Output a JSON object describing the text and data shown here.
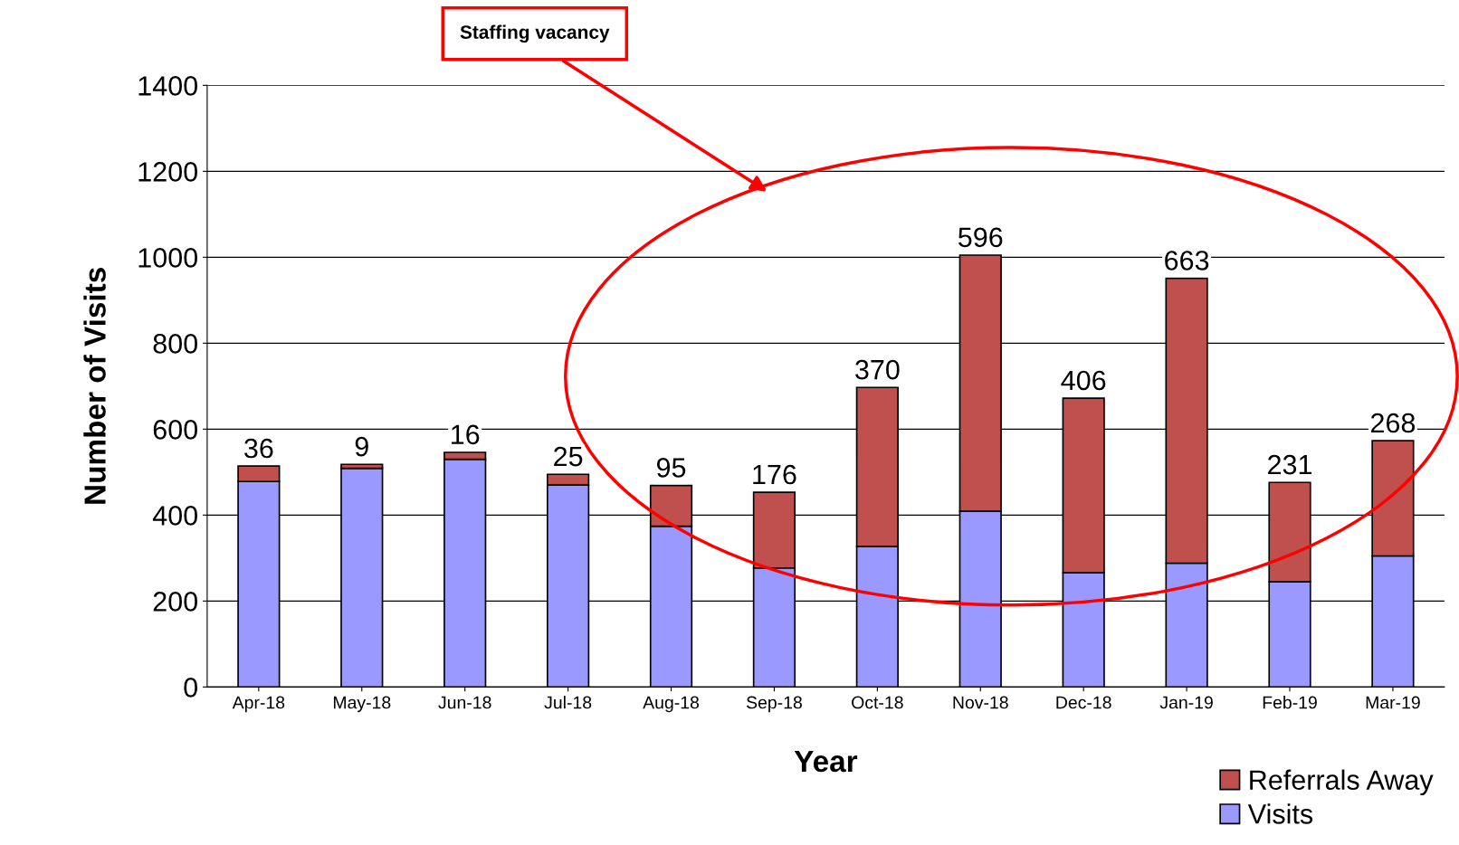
{
  "chart_data": {
    "type": "bar",
    "stacked": true,
    "xlabel": "Year",
    "ylabel": "Number of Visits",
    "categories": [
      "Apr-18",
      "May-18",
      "Jun-18",
      "Jul-18",
      "Aug-18",
      "Sep-18",
      "Oct-18",
      "Nov-18",
      "Dec-18",
      "Jan-19",
      "Feb-19",
      "Mar-19"
    ],
    "series": [
      {
        "name": "Visits",
        "color": "#9999ff",
        "values": [
          478,
          509,
          530,
          470,
          374,
          277,
          327,
          409,
          266,
          288,
          245,
          305
        ]
      },
      {
        "name": "Referrals Away",
        "color": "#c0504d",
        "values": [
          36,
          9,
          16,
          25,
          95,
          176,
          370,
          596,
          406,
          663,
          231,
          268
        ],
        "value_labels": [
          "36",
          "9",
          "16",
          "25",
          "95",
          "176",
          "370",
          "596",
          "406",
          "663",
          "231",
          "268"
        ]
      }
    ],
    "ylim": [
      0,
      1400
    ],
    "yticks": [
      0,
      200,
      400,
      600,
      800,
      1000,
      1200,
      1400
    ],
    "grid": "y",
    "legend": "bottom right",
    "annotations": [
      "Staffing vacancy"
    ]
  }
}
